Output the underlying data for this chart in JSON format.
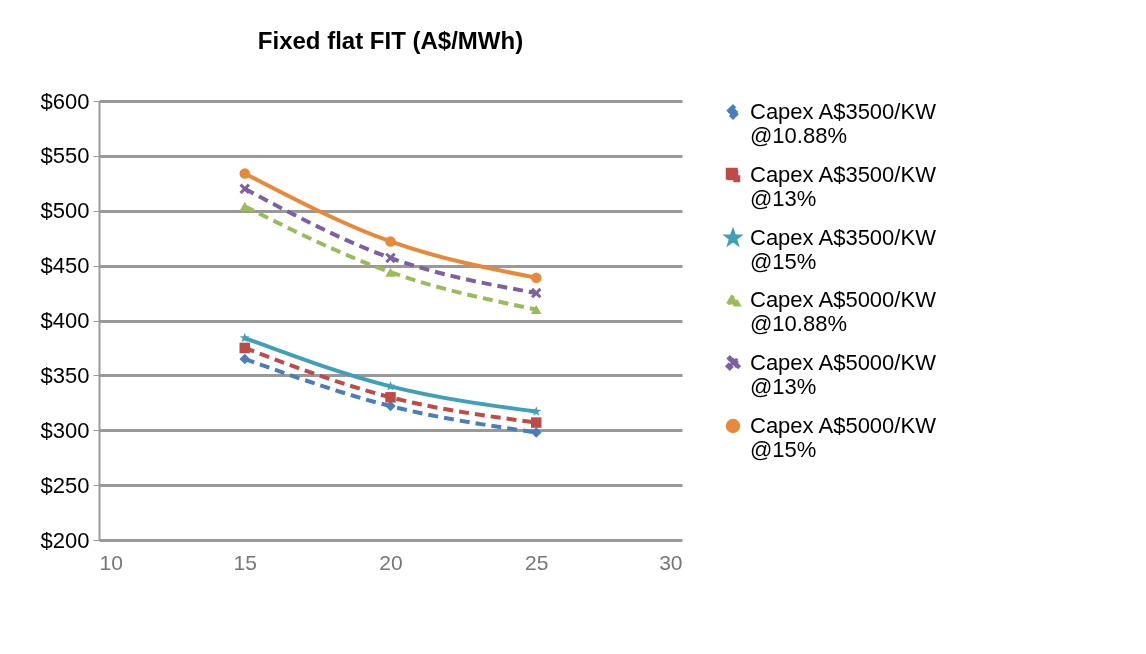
{
  "chart_data": {
    "type": "line",
    "title": "Fixed flat  FIT (A$/MWh)",
    "x": [
      15,
      20,
      25
    ],
    "series": [
      {
        "name": "Capex A$3500/KW @10.88%",
        "color": "#4a7ebb",
        "values": [
          365,
          322,
          298
        ],
        "marker": "diamond",
        "line_style": "dashed"
      },
      {
        "name": "Capex A$3500/KW @13%",
        "color": "#be4b48",
        "values": [
          375,
          330,
          307
        ],
        "marker": "square",
        "line_style": "dashed"
      },
      {
        "name": "Capex A$3500/KW @15%",
        "color": "#3fa0b8",
        "values": [
          384,
          340,
          317
        ],
        "marker": "star",
        "line_style": "solid"
      },
      {
        "name": "Capex A$5000/KW @10.88%",
        "color": "#9bbb59",
        "values": [
          504,
          444,
          410
        ],
        "marker": "triangle",
        "line_style": "dashed"
      },
      {
        "name": "Capex A$5000/KW @13%",
        "color": "#7d60a0",
        "values": [
          520,
          457,
          425
        ],
        "marker": "cross",
        "line_style": "dashed"
      },
      {
        "name": "Capex A$5000/KW @15%",
        "color": "#e8893a",
        "values": [
          534,
          472,
          439
        ],
        "marker": "circle",
        "line_style": "solid"
      }
    ],
    "xlim": [
      10,
      30
    ],
    "xticks": [
      10,
      15,
      20,
      25,
      30
    ],
    "ylim": [
      200,
      600
    ],
    "yticks": [
      {
        "value": 200,
        "label": "$200"
      },
      {
        "value": 250,
        "label": "$250"
      },
      {
        "value": 300,
        "label": "$300"
      },
      {
        "value": 350,
        "label": "$350"
      },
      {
        "value": 400,
        "label": "$400"
      },
      {
        "value": 450,
        "label": "$450"
      },
      {
        "value": 500,
        "label": "$500"
      },
      {
        "value": 550,
        "label": "$550"
      },
      {
        "value": 600,
        "label": "$600"
      }
    ],
    "grid": "y",
    "legend": "right"
  }
}
